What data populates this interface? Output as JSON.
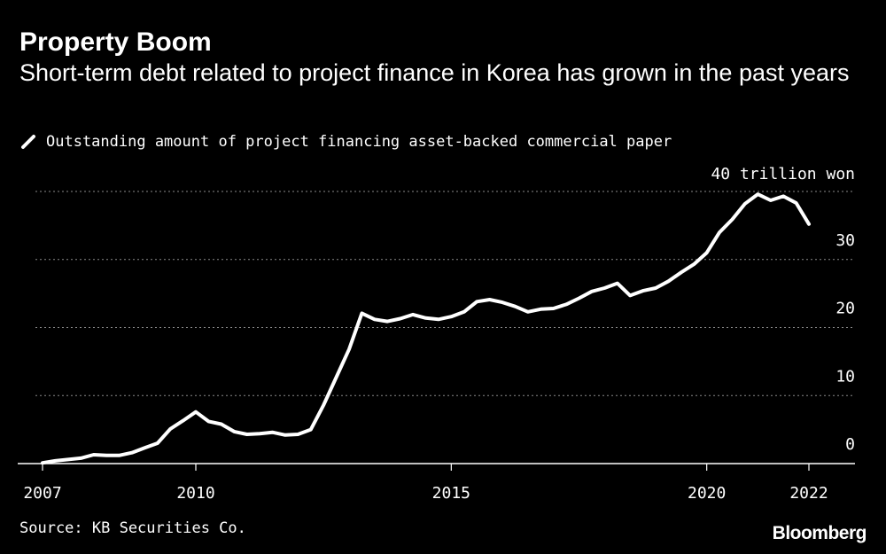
{
  "header": {
    "title": "Property Boom",
    "subtitle": "Short-term debt related to project finance in Korea has grown in the past years"
  },
  "legend": {
    "icon": "diagonal-line-icon",
    "label": "Outstanding amount of project financing asset-backed commercial paper"
  },
  "footer": {
    "source": "Source: KB Securities Co.",
    "brand": "Bloomberg"
  },
  "colors": {
    "background": "#000000",
    "text": "#ffffff",
    "line": "#ffffff",
    "grid": "#8a8a8a",
    "axis": "#ffffff"
  },
  "chart_data": {
    "type": "line",
    "title": "Property Boom",
    "subtitle": "Short-term debt related to project finance in Korea has grown in the past years",
    "xlabel": "",
    "ylabel": "",
    "unit_label": "40 trillion won",
    "xlim": [
      2007,
      2022
    ],
    "ylim": [
      0,
      40
    ],
    "grid": true,
    "legend_position": "top-left",
    "x_ticks": [
      2007,
      2010,
      2015,
      2020,
      2022
    ],
    "x_tick_labels": [
      "2007",
      "2010",
      "2015",
      "2020",
      "2022"
    ],
    "y_ticks": [
      0,
      10,
      20,
      30,
      40
    ],
    "y_tick_labels": [
      "0",
      "10",
      "20",
      "30",
      "40 trillion won"
    ],
    "series": [
      {
        "name": "Outstanding amount of project financing asset-backed commercial paper",
        "x": [
          2007.0,
          2007.25,
          2007.5,
          2007.75,
          2008.0,
          2008.25,
          2008.5,
          2008.75,
          2009.0,
          2009.25,
          2009.5,
          2009.75,
          2010.0,
          2010.25,
          2010.5,
          2010.75,
          2011.0,
          2011.25,
          2011.5,
          2011.75,
          2012.0,
          2012.25,
          2012.5,
          2012.75,
          2013.0,
          2013.25,
          2013.5,
          2013.75,
          2014.0,
          2014.25,
          2014.5,
          2014.75,
          2015.0,
          2015.25,
          2015.5,
          2015.75,
          2016.0,
          2016.25,
          2016.5,
          2016.75,
          2017.0,
          2017.25,
          2017.5,
          2017.75,
          2018.0,
          2018.25,
          2018.5,
          2018.75,
          2019.0,
          2019.25,
          2019.5,
          2019.75,
          2020.0,
          2020.25,
          2020.5,
          2020.75,
          2021.0,
          2021.25,
          2021.5,
          2021.75,
          2022.0
        ],
        "values": [
          0.1,
          0.4,
          0.6,
          0.8,
          1.3,
          1.2,
          1.2,
          1.6,
          2.3,
          3.0,
          5.1,
          6.3,
          7.6,
          6.2,
          5.8,
          4.7,
          4.3,
          4.4,
          4.6,
          4.2,
          4.3,
          5.0,
          8.6,
          12.7,
          16.8,
          22.1,
          21.2,
          20.9,
          21.3,
          21.9,
          21.4,
          21.2,
          21.6,
          22.3,
          23.8,
          24.1,
          23.7,
          23.1,
          22.3,
          22.7,
          22.8,
          23.4,
          24.3,
          25.3,
          25.8,
          26.5,
          24.7,
          25.4,
          25.8,
          26.8,
          28.1,
          29.3,
          31.0,
          34.0,
          35.9,
          38.2,
          39.6,
          38.7,
          39.3,
          38.3,
          35.2
        ]
      }
    ]
  }
}
